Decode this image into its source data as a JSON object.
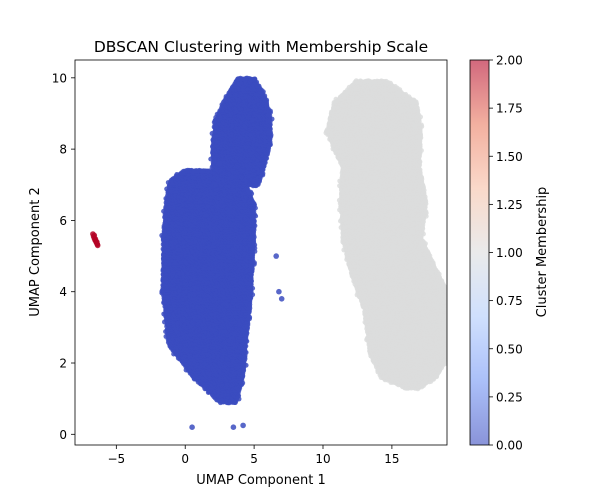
{
  "chart_data": {
    "type": "scatter",
    "title": "DBSCAN Clustering with Membership Scale",
    "xlabel": "UMAP Component 1",
    "ylabel": "UMAP Component 2",
    "xlim": [
      -8,
      19
    ],
    "ylim": [
      -0.3,
      10.5
    ],
    "xticks": [
      -5,
      0,
      5,
      10,
      15
    ],
    "yticks": [
      0,
      2,
      4,
      6,
      8,
      10
    ],
    "colorbar": {
      "label": "Cluster Membership",
      "range": [
        0.0,
        2.0
      ],
      "ticks": [
        "0.00",
        "0.25",
        "0.50",
        "0.75",
        "1.00",
        "1.25",
        "1.50",
        "1.75",
        "2.00"
      ],
      "colormap": "coolwarm",
      "stops": [
        "#3b4cc0",
        "#7396f5",
        "#b0cbfc",
        "#dcdddd",
        "#f6bfa6",
        "#ea7b60",
        "#b40426"
      ],
      "alpha": 0.6
    },
    "clusters": [
      {
        "membership": 0,
        "color": "#3b4cc0",
        "regions": [
          {
            "x_center": 1.1,
            "y_range": [
              0.9,
              7.4
            ],
            "width_by_y": [
              [
                0.9,
                1.2
              ],
              [
                1.6,
                3.6
              ],
              [
                2.5,
                5.6
              ],
              [
                4.0,
                6.4
              ],
              [
                5.5,
                6.6
              ],
              [
                6.5,
                6.4
              ],
              [
                7.1,
                5.4
              ],
              [
                7.4,
                2.8
              ]
            ],
            "shift_by_y": [
              [
                0.9,
                2.0
              ],
              [
                1.6,
                1.3
              ],
              [
                2.5,
                0.5
              ],
              [
                4.0,
                0.5
              ],
              [
                5.5,
                0.6
              ],
              [
                6.5,
                0.7
              ],
              [
                7.1,
                0.5
              ],
              [
                7.4,
                0.2
              ]
            ]
          },
          {
            "x_center": 3.8,
            "y_range": [
              7.0,
              10.0
            ],
            "width_by_y": [
              [
                7.0,
                3.0
              ],
              [
                7.6,
                3.8
              ],
              [
                8.2,
                4.2
              ],
              [
                8.8,
                4.0
              ],
              [
                9.4,
                3.0
              ],
              [
                10.0,
                1.2
              ]
            ],
            "shift_by_y": [
              [
                7.0,
                0.0
              ],
              [
                7.6,
                0.1
              ],
              [
                8.2,
                0.3
              ],
              [
                8.8,
                0.4
              ],
              [
                9.4,
                0.6
              ],
              [
                10.0,
                0.6
              ]
            ]
          }
        ],
        "stray_points": [
          [
            0.5,
            0.2
          ],
          [
            3.5,
            0.2
          ],
          [
            4.2,
            0.25
          ],
          [
            6.8,
            4.0
          ],
          [
            7.0,
            3.8
          ],
          [
            2.5,
            7.6
          ],
          [
            6.6,
            5.0
          ]
        ]
      },
      {
        "membership": 1,
        "color": "#dcdddd",
        "regions": [
          {
            "x_center": 15.0,
            "y_range": [
              1.3,
              9.9
            ],
            "width_by_y": [
              [
                1.3,
                1.0
              ],
              [
                1.6,
                4.0
              ],
              [
                2.3,
                5.8
              ],
              [
                3.5,
                6.8
              ],
              [
                4.5,
                6.3
              ],
              [
                5.5,
                5.7
              ],
              [
                6.5,
                6.2
              ],
              [
                7.5,
                5.6
              ],
              [
                8.5,
                6.8
              ],
              [
                9.3,
                6.0
              ],
              [
                9.9,
                2.2
              ]
            ],
            "shift_by_y": [
              [
                1.3,
                1.5
              ],
              [
                1.6,
                1.2
              ],
              [
                2.3,
                1.3
              ],
              [
                3.5,
                1.4
              ],
              [
                4.5,
                0.2
              ],
              [
                5.5,
                -0.7
              ],
              [
                6.5,
                -0.6
              ],
              [
                7.5,
                -0.8
              ],
              [
                8.5,
                -1.3
              ],
              [
                9.3,
                -1.2
              ],
              [
                9.9,
                -1.5
              ]
            ]
          }
        ],
        "stray_points": []
      },
      {
        "membership": 2,
        "color": "#b40426",
        "regions": [],
        "stray_points": [
          [
            -6.7,
            5.62
          ],
          [
            -6.65,
            5.55
          ],
          [
            -6.6,
            5.5
          ],
          [
            -6.55,
            5.45
          ],
          [
            -6.5,
            5.42
          ],
          [
            -6.45,
            5.38
          ],
          [
            -6.4,
            5.35
          ],
          [
            -6.35,
            5.3
          ],
          [
            -6.6,
            5.58
          ],
          [
            -6.52,
            5.48
          ],
          [
            -6.42,
            5.4
          ],
          [
            -6.38,
            5.33
          ]
        ]
      }
    ]
  }
}
